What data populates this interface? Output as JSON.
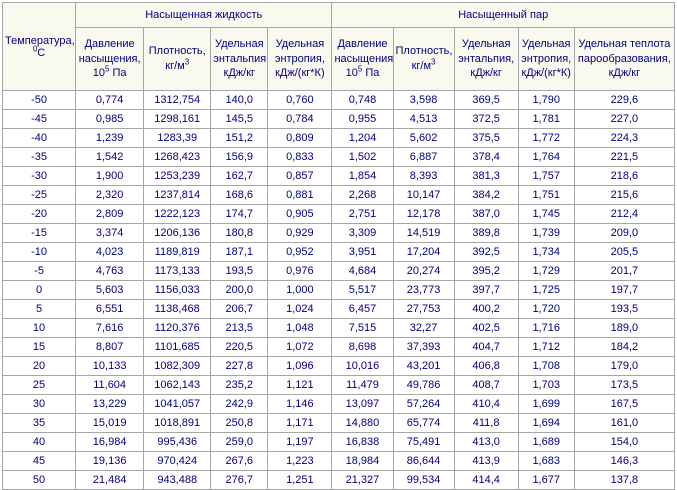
{
  "colors": {
    "text": "#000080",
    "border": "#a6a6a6",
    "header_background": "#f9f9ef",
    "cell_background": "#ffffff"
  },
  "header": {
    "temperature": {
      "title": "Температура,",
      "sup": "0",
      "unit": "С"
    },
    "liquid_group": "Насыщенная жидкость",
    "vapor_group": "Насыщенный пар",
    "pressure": {
      "title": "Давление насыщения,",
      "base": "10",
      "sup": "5",
      "post": " Па"
    },
    "density": {
      "title": "Плотность,",
      "base": "кг/м",
      "sup": "3"
    },
    "enthalpy": "Удельная энтальпия, кДж/кг",
    "entropy": "Удельная энтропия, кДж/(кг*К)",
    "heat": "Удельная теплота парообразования, кДж/кг"
  },
  "chart_data": {
    "type": "table",
    "column_groups": [
      "",
      "Насыщенная жидкость",
      "Насыщенный пар"
    ],
    "columns": [
      "Температура, 0С",
      "Давление насыщения, 10^5 Па",
      "Плотность, кг/м3",
      "Удельная энтальпия, кДж/кг",
      "Удельная энтропия, кДж/(кг*К)",
      "Давление насыщения, 10^5 Па",
      "Плотность, кг/м3",
      "Удельная энтальпия, кДж/кг",
      "Удельная энтропия, кДж/(кг*К)",
      "Удельная теплота парообразования, кДж/кг"
    ],
    "rows": [
      [
        "-50",
        "0,774",
        "1312,754",
        "140,0",
        "0,760",
        "0,748",
        "3,598",
        "369,5",
        "1,790",
        "229,6"
      ],
      [
        "-45",
        "0,985",
        "1298,161",
        "145,5",
        "0,784",
        "0,955",
        "4,513",
        "372,5",
        "1,781",
        "227,0"
      ],
      [
        "-40",
        "1,239",
        "1283,39",
        "151,2",
        "0,809",
        "1,204",
        "5,602",
        "375,5",
        "1,772",
        "224,3"
      ],
      [
        "-35",
        "1,542",
        "1268,423",
        "156,9",
        "0,833",
        "1,502",
        "6,887",
        "378,4",
        "1,764",
        "221,5"
      ],
      [
        "-30",
        "1,900",
        "1253,239",
        "162,7",
        "0,857",
        "1,854",
        "8,393",
        "381,3",
        "1,757",
        "218,6"
      ],
      [
        "-25",
        "2,320",
        "1237,814",
        "168,6",
        "0,881",
        "2,268",
        "10,147",
        "384,2",
        "1,751",
        "215,6"
      ],
      [
        "-20",
        "2,809",
        "1222,123",
        "174,7",
        "0,905",
        "2,751",
        "12,178",
        "387,0",
        "1,745",
        "212,4"
      ],
      [
        "-15",
        "3,374",
        "1206,136",
        "180,8",
        "0,929",
        "3,309",
        "14,519",
        "389,8",
        "1,739",
        "209,0"
      ],
      [
        "-10",
        "4,023",
        "1189,819",
        "187,1",
        "0,952",
        "3,951",
        "17,204",
        "392,5",
        "1,734",
        "205,5"
      ],
      [
        "-5",
        "4,763",
        "1173,133",
        "193,5",
        "0,976",
        "4,684",
        "20,274",
        "395,2",
        "1,729",
        "201,7"
      ],
      [
        "0",
        "5,603",
        "1156,033",
        "200,0",
        "1,000",
        "5,517",
        "23,773",
        "397,7",
        "1,725",
        "197,7"
      ],
      [
        "5",
        "6,551",
        "1138,468",
        "206,7",
        "1,024",
        "6,457",
        "27,753",
        "400,2",
        "1,720",
        "193,5"
      ],
      [
        "10",
        "7,616",
        "1120,376",
        "213,5",
        "1,048",
        "7,515",
        "32,27",
        "402,5",
        "1,716",
        "189,0"
      ],
      [
        "15",
        "8,807",
        "1101,685",
        "220,5",
        "1,072",
        "8,698",
        "37,393",
        "404,7",
        "1,712",
        "184,2"
      ],
      [
        "20",
        "10,133",
        "1082,309",
        "227,8",
        "1,096",
        "10,016",
        "43,201",
        "406,8",
        "1,708",
        "179,0"
      ],
      [
        "25",
        "11,604",
        "1062,143",
        "235,2",
        "1,121",
        "11,479",
        "49,786",
        "408,7",
        "1,703",
        "173,5"
      ],
      [
        "30",
        "13,229",
        "1041,057",
        "242,9",
        "1,146",
        "13,097",
        "57,264",
        "410,4",
        "1,699",
        "167,5"
      ],
      [
        "35",
        "15,019",
        "1018,891",
        "250,8",
        "1,171",
        "14,880",
        "65,774",
        "411,8",
        "1,694",
        "161,0"
      ],
      [
        "40",
        "16,984",
        "995,436",
        "259,0",
        "1,197",
        "16,838",
        "75,491",
        "413,0",
        "1,689",
        "154,0"
      ],
      [
        "45",
        "19,136",
        "970,424",
        "267,6",
        "1,223",
        "18,984",
        "86,644",
        "413,9",
        "1,683",
        "146,3"
      ],
      [
        "50",
        "21,484",
        "943,488",
        "276,7",
        "1,251",
        "21,327",
        "99,534",
        "414,4",
        "1,677",
        "137,8"
      ]
    ]
  }
}
